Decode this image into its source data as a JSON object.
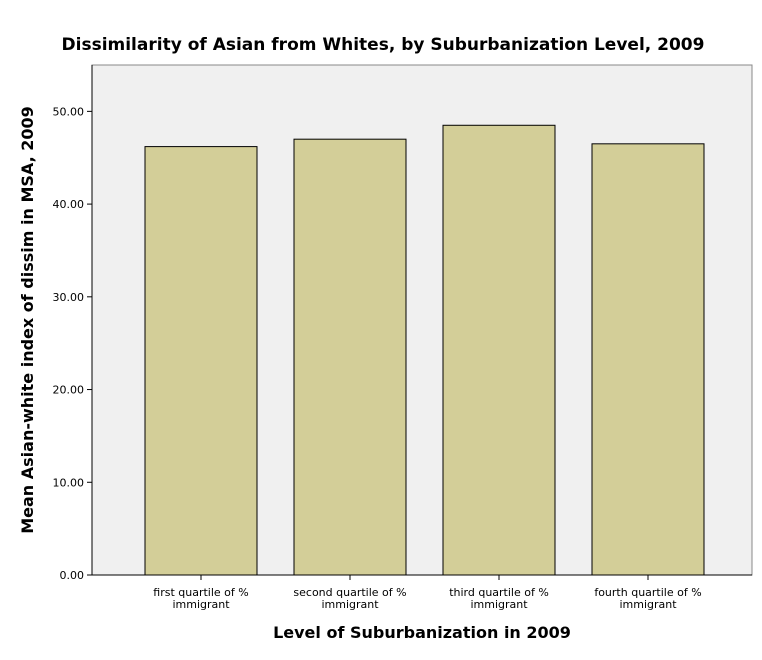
{
  "chart_data": {
    "type": "bar",
    "title": "Dissimilarity of Asian from Whites, by Suburbanization Level, 2009",
    "xlabel": "Level of Suburbanization in 2009",
    "ylabel": "Mean Asian-white index of dissim in MSA, 2009",
    "categories": [
      [
        "first quartile of %",
        "immigrant"
      ],
      [
        "second quartile of %",
        "immigrant"
      ],
      [
        "third quartile of %",
        "immigrant"
      ],
      [
        "fourth quartile of %",
        "immigrant"
      ]
    ],
    "values": [
      46.2,
      47.0,
      48.5,
      46.5
    ],
    "ylim": [
      0,
      55
    ],
    "yticks": [
      "0.00",
      "10.00",
      "20.00",
      "30.00",
      "40.00",
      "50.00"
    ],
    "grid": false,
    "colors": {
      "plot_background": "#f0f0f0",
      "bar_fill": "#d3ce98",
      "bar_stroke": "#000000",
      "axis": "#000000"
    }
  }
}
